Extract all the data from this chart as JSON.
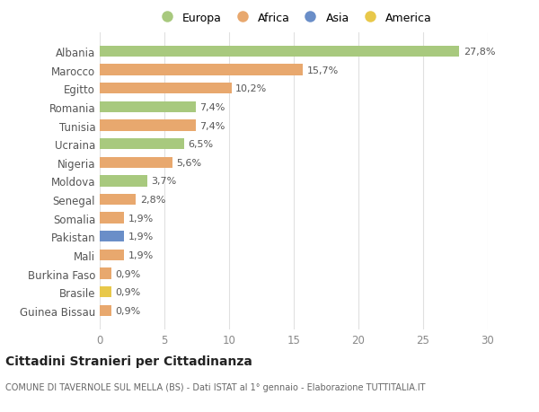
{
  "countries": [
    "Albania",
    "Marocco",
    "Egitto",
    "Romania",
    "Tunisia",
    "Ucraina",
    "Nigeria",
    "Moldova",
    "Senegal",
    "Somalia",
    "Pakistan",
    "Mali",
    "Burkina Faso",
    "Brasile",
    "Guinea Bissau"
  ],
  "values": [
    27.8,
    15.7,
    10.2,
    7.4,
    7.4,
    6.5,
    5.6,
    3.7,
    2.8,
    1.9,
    1.9,
    1.9,
    0.9,
    0.9,
    0.9
  ],
  "labels": [
    "27,8%",
    "15,7%",
    "10,2%",
    "7,4%",
    "7,4%",
    "6,5%",
    "5,6%",
    "3,7%",
    "2,8%",
    "1,9%",
    "1,9%",
    "1,9%",
    "0,9%",
    "0,9%",
    "0,9%"
  ],
  "continents": [
    "Europa",
    "Africa",
    "Africa",
    "Europa",
    "Africa",
    "Europa",
    "Africa",
    "Europa",
    "Africa",
    "Africa",
    "Asia",
    "Africa",
    "Africa",
    "America",
    "Africa"
  ],
  "continent_colors": {
    "Europa": "#a8c97e",
    "Africa": "#e8a86e",
    "Asia": "#6a8ec8",
    "America": "#e8c84a"
  },
  "legend_order": [
    "Europa",
    "Africa",
    "Asia",
    "America"
  ],
  "title": "Cittadini Stranieri per Cittadinanza",
  "subtitle": "COMUNE DI TAVERNOLE SUL MELLA (BS) - Dati ISTAT al 1° gennaio - Elaborazione TUTTITALIA.IT",
  "xlim": [
    0,
    30
  ],
  "xticks": [
    0,
    5,
    10,
    15,
    20,
    25,
    30
  ],
  "bg_color": "#ffffff",
  "grid_color": "#e0e0e0"
}
